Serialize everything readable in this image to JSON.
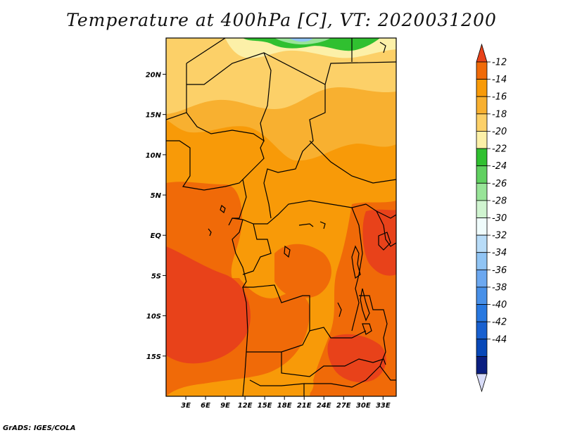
{
  "title": "Temperature at 400hPa [C], VT: 2020031200",
  "credit": "GrADS: IGES/COLA",
  "map": {
    "lon_ticks": [
      "3E",
      "6E",
      "9E",
      "12E",
      "15E",
      "18E",
      "21E",
      "24E",
      "27E",
      "30E",
      "33E"
    ],
    "lat_ticks": [
      "20N",
      "15N",
      "10N",
      "5N",
      "EQ",
      "5S",
      "10S",
      "15S"
    ],
    "lon_range": [
      0,
      35
    ],
    "lat_range": [
      -20,
      24.5
    ]
  },
  "colorbar": {
    "labels": [
      "-12",
      "-14",
      "-16",
      "-18",
      "-20",
      "-22",
      "-24",
      "-26",
      "-28",
      "-30",
      "-32",
      "-34",
      "-36",
      "-38",
      "-40",
      "-42",
      "-44"
    ],
    "colors": [
      "#e8421a",
      "#f06a08",
      "#f89a08",
      "#f8b030",
      "#fcd068",
      "#fcf0a8",
      "#30c030",
      "#60d060",
      "#98e498",
      "#d0f4d0",
      "#f0fcfc",
      "#b8dcf8",
      "#90c4f4",
      "#6ca8f0",
      "#4890e8",
      "#2878e0",
      "#1860d0",
      "#0848b8",
      "#0a1e80",
      "#d8dcf8"
    ]
  },
  "fields": {
    "colors": {
      "darkest": "#e8421a",
      "dark": "#f06a08",
      "mid": "#f89a08",
      "light": "#f8b030",
      "pale": "#fcd068",
      "cream": "#fcf0a8",
      "green": "#30c030",
      "lightgreen": "#98e498",
      "blue": "#90c4f4"
    }
  }
}
